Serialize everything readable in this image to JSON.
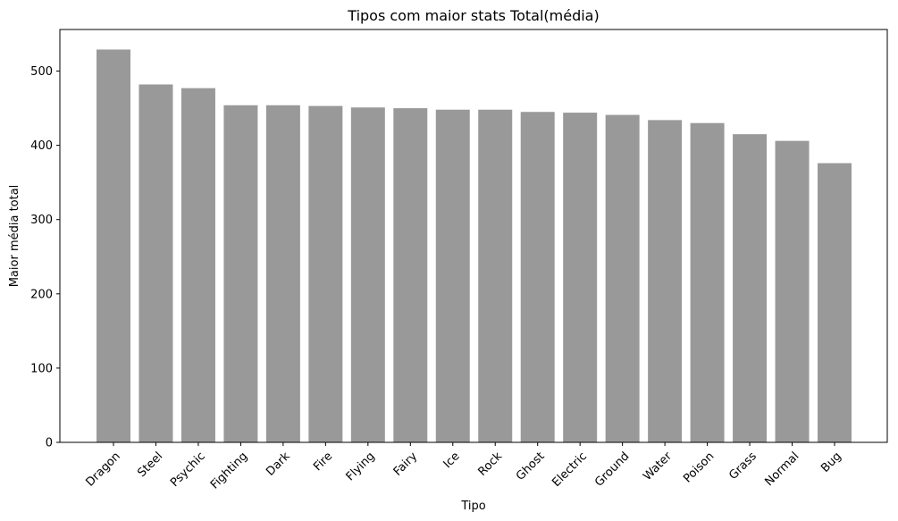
{
  "chart_data": {
    "type": "bar",
    "title": "Tipos com maior stats Total(média)",
    "xlabel": "Tipo",
    "ylabel": "Maior média total",
    "categories": [
      "Dragon",
      "Steel",
      "Psychic",
      "Fighting",
      "Dark",
      "Fire",
      "Flying",
      "Fairy",
      "Ice",
      "Rock",
      "Ghost",
      "Electric",
      "Ground",
      "Water",
      "Poison",
      "Grass",
      "Normal",
      "Bug"
    ],
    "values": [
      529,
      482,
      477,
      454,
      454,
      453,
      451,
      450,
      448,
      448,
      445,
      444,
      441,
      434,
      430,
      415,
      406,
      376
    ],
    "ylim": [
      0,
      556
    ],
    "yticks": [
      0,
      100,
      200,
      300,
      400,
      500
    ],
    "grid": false,
    "bar_color": "#999999"
  }
}
